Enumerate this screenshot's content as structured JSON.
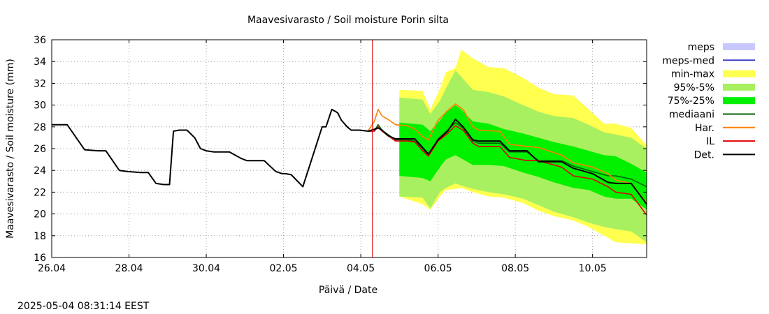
{
  "chart_data": {
    "type": "area",
    "title": "Maavesivarasto / Soil moisture   Porin silta",
    "xlabel": "Päivä / Date",
    "ylabel": "Maavesivarasto / Soil moisture (mm)",
    "ylim": [
      16,
      36
    ],
    "xlim": [
      0,
      15.4
    ],
    "y_ticks": [
      "16",
      "18",
      "20",
      "22",
      "24",
      "26",
      "28",
      "30",
      "32",
      "34",
      "36"
    ],
    "x_ticks": [
      {
        "day": 0,
        "label": "26.04"
      },
      {
        "day": 2,
        "label": "28.04"
      },
      {
        "day": 4,
        "label": "30.04"
      },
      {
        "day": 6,
        "label": "02.05"
      },
      {
        "day": 8,
        "label": "04.05"
      },
      {
        "day": 10,
        "label": "06.05"
      },
      {
        "day": 12,
        "label": "08.05"
      },
      {
        "day": 14,
        "label": "10.05"
      }
    ],
    "grid": true,
    "now_day": 8.3,
    "timestamp": "2025-05-04 08:31:14 EEST",
    "legend_position": "right",
    "legend": [
      {
        "name": "meps",
        "kind": "box",
        "color": "#c8c8ff"
      },
      {
        "name": "meps-med",
        "kind": "line",
        "color": "#4040c8"
      },
      {
        "name": "min-max",
        "kind": "box",
        "color": "#ffff50"
      },
      {
        "name": "95%-5%",
        "kind": "box",
        "color": "#a8f060"
      },
      {
        "name": "75%-25%",
        "kind": "box",
        "color": "#00f000"
      },
      {
        "name": "mediaani",
        "kind": "line",
        "color": "#006400"
      },
      {
        "name": "Har.",
        "kind": "line",
        "color": "#ff8000"
      },
      {
        "name": "IL",
        "kind": "line",
        "color": "#e00000"
      },
      {
        "name": "Det.",
        "kind": "line",
        "color": "#000000"
      }
    ],
    "series": [
      {
        "name": "Det.",
        "x": [
          0,
          0.4,
          0.85,
          1.2,
          1.4,
          1.75,
          1.95,
          2.3,
          2.5,
          2.7,
          2.9,
          3.05,
          3.15,
          3.3,
          3.5,
          3.7,
          3.85,
          4.0,
          4.2,
          4.6,
          4.9,
          5.05,
          5.2,
          5.5,
          5.8,
          5.97,
          6.05,
          6.2,
          6.5,
          7.0,
          7.1,
          7.25,
          7.4,
          7.5,
          7.65,
          7.75,
          7.95,
          8.2,
          8.45,
          8.55,
          8.7,
          8.9,
          9.2,
          9.4,
          9.6,
          9.75,
          10.0,
          10.25,
          10.45,
          10.65,
          10.9,
          11.05,
          11.6,
          11.85,
          12.3,
          12.6,
          13.2,
          13.5,
          14.0,
          14.4,
          14.6,
          15.0,
          15.4
        ],
        "y": [
          28.2,
          28.2,
          25.9,
          25.8,
          25.8,
          24.0,
          23.9,
          23.8,
          23.8,
          22.8,
          22.7,
          22.7,
          27.6,
          27.7,
          27.7,
          27.0,
          26.0,
          25.8,
          25.7,
          25.7,
          25.1,
          24.9,
          24.9,
          24.9,
          23.9,
          23.7,
          23.7,
          23.6,
          22.5,
          28.0,
          28.0,
          29.6,
          29.3,
          28.6,
          28.0,
          27.7,
          27.7,
          27.6,
          27.9,
          27.7,
          27.2,
          26.9,
          26.9,
          26.9,
          26.1,
          25.5,
          26.8,
          27.6,
          28.7,
          28.0,
          26.8,
          26.7,
          26.7,
          25.8,
          25.8,
          24.8,
          24.8,
          24.2,
          23.7,
          22.9,
          22.8,
          22.8,
          20.9
        ]
      },
      {
        "name": "IL",
        "x": [
          8.2,
          8.35,
          8.45,
          8.55,
          8.7,
          8.9,
          9.2,
          9.4,
          9.6,
          9.75,
          10.0,
          10.25,
          10.45,
          10.65,
          10.9,
          11.05,
          11.6,
          11.85,
          12.3,
          12.6,
          13.2,
          13.5,
          14.0,
          14.4,
          14.6,
          15.0,
          15.4
        ],
        "y": [
          27.6,
          27.6,
          28.0,
          27.6,
          27.2,
          26.7,
          26.7,
          26.6,
          25.8,
          25.3,
          26.7,
          27.4,
          28.1,
          27.7,
          26.5,
          26.2,
          26.2,
          25.2,
          24.9,
          24.9,
          24.3,
          23.5,
          23.2,
          22.5,
          22.0,
          21.8,
          19.9
        ]
      },
      {
        "name": "Har.",
        "x": [
          8.2,
          8.35,
          8.45,
          8.55,
          8.7,
          8.9,
          9.2,
          9.4,
          9.6,
          9.75,
          10.0,
          10.25,
          10.45,
          10.65,
          10.9,
          11.05,
          11.6,
          11.85,
          12.3,
          12.6,
          13.2,
          13.5,
          14.0,
          14.4,
          14.6,
          15.0,
          15.4
        ],
        "y": [
          27.7,
          28.5,
          29.6,
          29.0,
          28.7,
          28.2,
          28.1,
          27.8,
          27.1,
          26.8,
          28.6,
          29.5,
          30.1,
          29.6,
          28.0,
          27.7,
          27.6,
          26.4,
          26.2,
          26.1,
          25.4,
          24.7,
          24.3,
          23.7,
          23.1,
          22.8,
          21.0
        ]
      },
      {
        "name": "mediaani",
        "x": [
          8.2,
          8.35,
          8.45,
          8.55,
          8.7,
          8.9,
          9.2,
          9.4,
          9.6,
          9.75,
          10.0,
          10.25,
          10.45,
          10.65,
          10.9,
          11.05,
          11.6,
          11.85,
          12.3,
          12.6,
          13.2,
          13.5,
          14.0,
          14.4,
          14.6,
          15.0,
          15.4
        ],
        "y": [
          27.6,
          27.6,
          28.2,
          27.7,
          27.3,
          26.8,
          26.8,
          26.7,
          26.0,
          25.4,
          26.9,
          27.7,
          28.4,
          27.9,
          26.7,
          26.5,
          26.5,
          25.7,
          25.7,
          24.9,
          24.9,
          24.4,
          23.9,
          23.5,
          23.5,
          23.2,
          22.5
        ]
      }
    ],
    "bands": [
      {
        "name": "min-max",
        "x": [
          9.0,
          9.6,
          9.8,
          10.05,
          10.2,
          10.45,
          10.6,
          10.9,
          11.3,
          11.7,
          12.2,
          12.6,
          13.0,
          13.5,
          13.9,
          14.3,
          14.6,
          15.0,
          15.4
        ],
        "lo": [
          21.6,
          20.9,
          20.4,
          21.6,
          22.2,
          22.3,
          22.4,
          22.0,
          21.6,
          21.5,
          21.0,
          20.3,
          19.8,
          19.4,
          18.8,
          18.0,
          17.4,
          17.3,
          17.2
        ],
        "hi": [
          31.4,
          31.3,
          29.6,
          31.5,
          33.0,
          33.4,
          35.1,
          34.3,
          33.5,
          33.4,
          32.5,
          31.6,
          31.0,
          30.9,
          29.6,
          28.3,
          28.3,
          27.9,
          26.3
        ]
      },
      {
        "name": "95%-5%",
        "x": [
          9.0,
          9.6,
          9.8,
          10.05,
          10.2,
          10.45,
          10.6,
          10.9,
          11.3,
          11.7,
          12.2,
          12.6,
          13.0,
          13.5,
          13.9,
          14.3,
          14.6,
          15.0,
          15.4
        ],
        "lo": [
          21.6,
          21.5,
          20.5,
          22.0,
          22.4,
          22.8,
          22.6,
          22.3,
          22.0,
          21.8,
          21.4,
          20.8,
          20.2,
          19.7,
          19.2,
          18.8,
          18.6,
          18.4,
          17.4
        ],
        "hi": [
          30.7,
          30.5,
          29.2,
          30.4,
          31.5,
          33.2,
          32.6,
          31.4,
          31.2,
          30.8,
          30.0,
          29.4,
          29.0,
          28.8,
          28.2,
          27.5,
          27.3,
          27.0,
          26.0
        ]
      },
      {
        "name": "75%-25%",
        "x": [
          9.0,
          9.6,
          9.8,
          10.05,
          10.2,
          10.45,
          10.6,
          10.9,
          11.3,
          11.7,
          12.2,
          12.6,
          13.0,
          13.5,
          13.9,
          14.3,
          14.6,
          15.0,
          15.4
        ],
        "lo": [
          23.5,
          23.3,
          23.0,
          24.3,
          25.0,
          25.4,
          25.1,
          24.5,
          24.5,
          24.4,
          23.8,
          23.4,
          22.9,
          22.4,
          22.2,
          21.6,
          21.4,
          21.4,
          20.4
        ],
        "hi": [
          28.4,
          28.2,
          27.6,
          28.6,
          29.3,
          30.0,
          29.6,
          28.5,
          28.3,
          27.8,
          27.4,
          27.0,
          26.6,
          26.2,
          25.8,
          25.4,
          25.3,
          24.6,
          23.8
        ]
      }
    ]
  }
}
